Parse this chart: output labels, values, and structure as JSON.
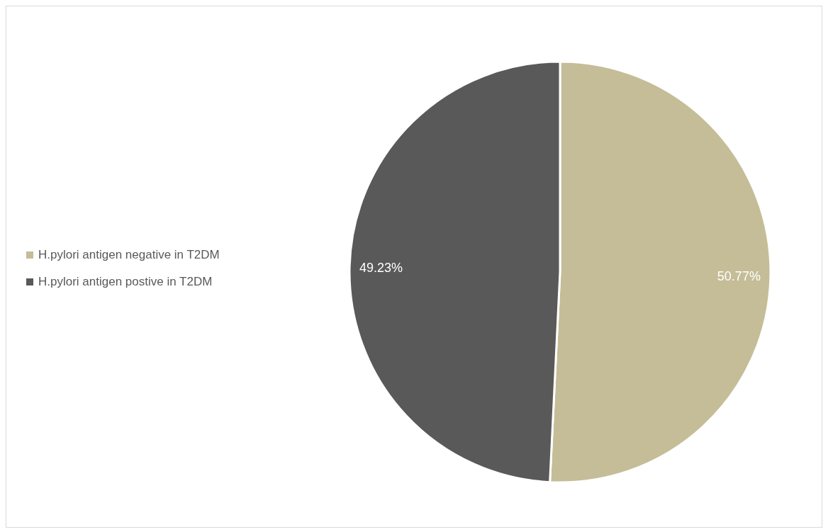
{
  "chart_data": {
    "type": "pie",
    "categories": [
      "H.pylori antigen negative in T2DM",
      "H.pylori antigen postive in T2DM"
    ],
    "values": [
      50.77,
      49.23
    ],
    "value_labels": [
      "50.77%",
      "49.23%"
    ],
    "colors": [
      "#c4bd97",
      "#595959"
    ],
    "legend": "left"
  }
}
